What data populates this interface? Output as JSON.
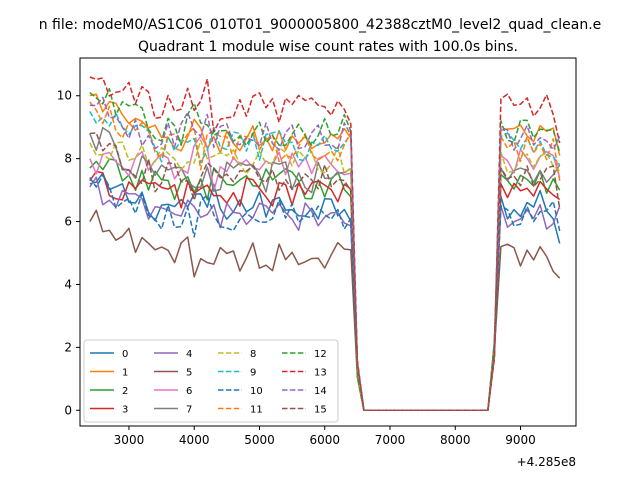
{
  "figure": {
    "suptitle": "n file: modeM0/AS1C06_010T01_9000005800_42388cztM0_level2_quad_clean.e",
    "axes_title": "Quadrant 1 module wise count rates with 100.0s bins.",
    "x_offset_label": "+4.285e8"
  },
  "chart_data": {
    "type": "line",
    "title": "Quadrant 1 module wise count rates with 100.0s bins.",
    "xlabel": "",
    "ylabel": "",
    "x_offset": 428500000,
    "xlim": [
      2250,
      9850
    ],
    "ylim": [
      -0.5,
      11.2
    ],
    "xticks": [
      3000,
      4000,
      5000,
      6000,
      7000,
      8000,
      9000
    ],
    "yticks": [
      0,
      2,
      4,
      6,
      8,
      10
    ],
    "grid": false,
    "legend": {
      "position": "lower-left",
      "columns": 4
    },
    "segments": [
      {
        "x_start": 2400,
        "x_end": 6400,
        "step": 100
      },
      {
        "x_start": 8700,
        "x_end": 9600,
        "step": 100
      }
    ],
    "gap_x": [
      6400,
      6500,
      6600,
      8500,
      8600,
      8700
    ],
    "series": [
      {
        "name": "0",
        "color": "#1f77b4",
        "dash": "solid",
        "base": 6.5,
        "start": 7.2,
        "end": 5.3
      },
      {
        "name": "1",
        "color": "#ff7f0e",
        "dash": "solid",
        "base": 8.6,
        "start": 10.0,
        "end": 8.1
      },
      {
        "name": "2",
        "color": "#2ca02c",
        "dash": "solid",
        "base": 7.2,
        "start": 7.7,
        "end": 7.0
      },
      {
        "name": "3",
        "color": "#d62728",
        "dash": "solid",
        "base": 6.9,
        "start": 7.3,
        "end": 6.7
      },
      {
        "name": "4",
        "color": "#9467bd",
        "dash": "solid",
        "base": 6.2,
        "start": 7.1,
        "end": 6.5
      },
      {
        "name": "5",
        "color": "#8c564b",
        "dash": "solid",
        "base": 4.9,
        "start": 6.0,
        "end": 4.2
      },
      {
        "name": "6",
        "color": "#e377c2",
        "dash": "solid",
        "base": 7.8,
        "start": 8.0,
        "end": 7.4
      },
      {
        "name": "7",
        "color": "#7f7f7f",
        "dash": "solid",
        "base": 7.4,
        "start": 8.8,
        "end": 7.8
      },
      {
        "name": "8",
        "color": "#bcbd22",
        "dash": "dashed",
        "base": 7.9,
        "start": 8.5,
        "end": 7.6
      },
      {
        "name": "9",
        "color": "#17becf",
        "dash": "dashed",
        "base": 8.4,
        "start": 9.5,
        "end": 7.8
      },
      {
        "name": "10",
        "color": "#1f77b4",
        "dash": "dashed",
        "base": 6.2,
        "start": 7.4,
        "end": 5.7
      },
      {
        "name": "11",
        "color": "#ff7f0e",
        "dash": "dashed",
        "base": 8.4,
        "start": 9.8,
        "end": 7.3
      },
      {
        "name": "12",
        "color": "#2ca02c",
        "dash": "dashed",
        "base": 8.9,
        "start": 10.1,
        "end": 8.2
      },
      {
        "name": "13",
        "color": "#d62728",
        "dash": "dashed",
        "base": 9.6,
        "start": 10.6,
        "end": 8.5
      },
      {
        "name": "14",
        "color": "#9467bd",
        "dash": "dashed",
        "base": 8.7,
        "start": 9.7,
        "end": 8.7
      },
      {
        "name": "15",
        "color": "#8c564b",
        "dash": "dashed",
        "base": 7.4,
        "start": 8.8,
        "end": 6.4
      }
    ]
  }
}
